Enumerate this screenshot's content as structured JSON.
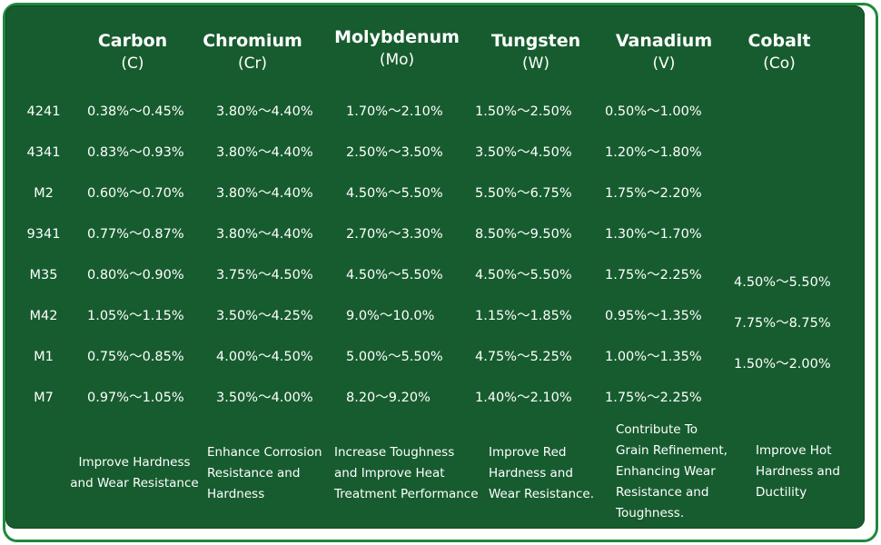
{
  "columns": [
    {
      "name": "Carbon",
      "symbol": "(C)"
    },
    {
      "name": "Chromium",
      "symbol": "(Cr)"
    },
    {
      "name": "Molybdenum",
      "symbol": "(Mo)"
    },
    {
      "name": "Tungsten",
      "symbol": "(W)"
    },
    {
      "name": "Vanadium",
      "symbol": "(V)"
    },
    {
      "name": "Cobalt",
      "symbol": "(Co)"
    }
  ],
  "rows": [
    {
      "grade": "4241",
      "values": [
        "0.38%～0.45%",
        "3.80%～4.40%",
        "1.70%～2.10%",
        "1.50%～2.50%",
        "0.50%～1.00%",
        ""
      ]
    },
    {
      "grade": "4341",
      "values": [
        "0.83%～0.93%",
        "3.80%～4.40%",
        "2.50%～3.50%",
        "3.50%～4.50%",
        "1.20%～1.80%",
        ""
      ]
    },
    {
      "grade": "M2",
      "values": [
        "0.60%～0.70%",
        "3.80%～4.40%",
        "4.50%～5.50%",
        "5.50%～6.75%",
        "1.75%～2.20%",
        ""
      ]
    },
    {
      "grade": "9341",
      "values": [
        "0.77%～0.87%",
        "3.80%～4.40%",
        "2.70%～3.30%",
        "8.50%～9.50%",
        "1.30%～1.70%",
        ""
      ]
    },
    {
      "grade": "M35",
      "values": [
        "0.80%～0.90%",
        "3.75%～4.50%",
        "4.50%～5.50%",
        "4.50%～5.50%",
        "1.75%～2.25%",
        "4.50%～5.50%"
      ]
    },
    {
      "grade": "M42",
      "values": [
        "1.05%～1.15%",
        "3.50%～4.25%",
        "9.0%～10.0%",
        "1.15%～1.85%",
        "0.95%～1.35%",
        "7.75%～8.75%"
      ]
    },
    {
      "grade": "M1",
      "values": [
        "0.75%～0.85%",
        "4.00%～4.50%",
        "5.00%～5.50%",
        "4.75%～5.25%",
        "1.00%～1.35%",
        "1.50%～2.00%"
      ]
    },
    {
      "grade": "M7",
      "values": [
        "0.97%～1.05%",
        "3.50%～4.00%",
        "8.20～9.20%",
        "1.40%～2.10%",
        "1.75%～2.25%",
        ""
      ]
    }
  ],
  "descriptions": [
    "Improve Hardness\nand Wear Resistance",
    "Enhance Corrosion\nResistance and\nHardness",
    "Increase Toughness\nand Improve Heat\nTreatment Performance",
    "Improve Red\nHardness and\nWear Resistance.",
    "Contribute To\nGrain Refinement,\nEnhancing Wear\nResistance and\nToughness.",
    "Improve Hot\nHardness and\nDuctility"
  ],
  "colors": {
    "panel": "#175c2f",
    "border": "#1f8a3c",
    "text": "#ffffff"
  }
}
